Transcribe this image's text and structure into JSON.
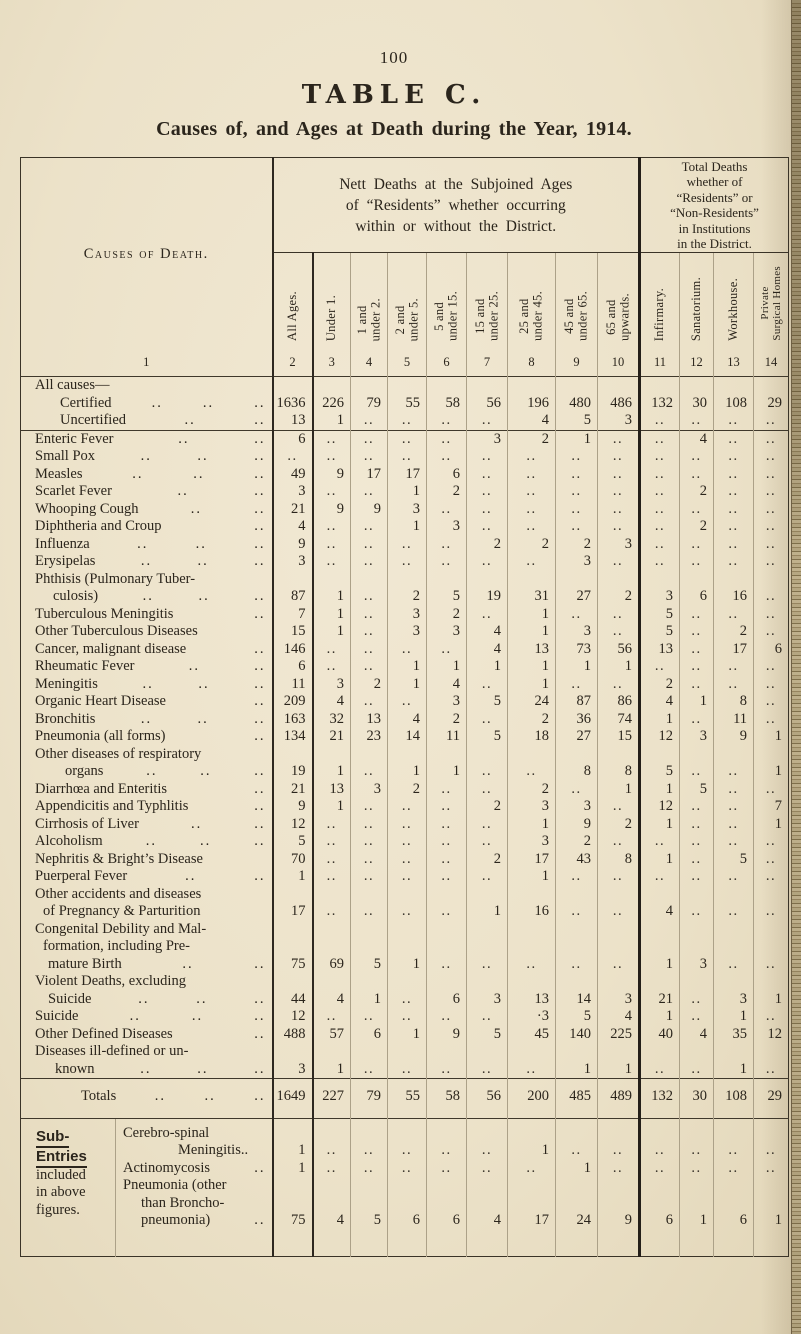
{
  "page": {
    "number": "100",
    "title": "TABLE C.",
    "subtitle": "Causes of, and Ages at Death during the Year, 1914."
  },
  "colors": {
    "paper": "#ece2c9",
    "ink": "#2b251c",
    "rule_dark": "#3a3327",
    "rule_light": "#aca188",
    "binding_edge": "#887852"
  },
  "table": {
    "header": {
      "causes_col": {
        "title": "Causes of Death.",
        "number": "1"
      },
      "nett_group": {
        "lines": [
          "Nett Deaths at the Subjoined Ages",
          "of “Residents” whether occurring",
          "within or without the District."
        ]
      },
      "total_group": {
        "lines": [
          "Total Deaths",
          "whether of",
          "“Residents” or",
          "“Non-Residents”",
          "in Institutions",
          "in the District."
        ]
      },
      "columns": [
        {
          "lines": [
            "All Ages."
          ],
          "number": "2"
        },
        {
          "lines": [
            "Under 1."
          ],
          "number": "3"
        },
        {
          "lines": [
            "1 and",
            "under 2."
          ],
          "number": "4"
        },
        {
          "lines": [
            "2 and",
            "under 5."
          ],
          "number": "5"
        },
        {
          "lines": [
            "5 and",
            "under 15."
          ],
          "number": "6"
        },
        {
          "lines": [
            "15 and",
            "under 25."
          ],
          "number": "7"
        },
        {
          "lines": [
            "25 and",
            "under 45."
          ],
          "number": "8"
        },
        {
          "lines": [
            "45 and",
            "under 65."
          ],
          "number": "9"
        },
        {
          "lines": [
            "65 and",
            "upwards."
          ],
          "number": "10"
        },
        {
          "lines": [
            "Infirmary."
          ],
          "number": "11"
        },
        {
          "lines": [
            "Sanatorium."
          ],
          "number": "12"
        },
        {
          "lines": [
            "Workhouse."
          ],
          "number": "13"
        },
        {
          "lines": [
            "Private",
            "Surgical Homes"
          ],
          "number": "14",
          "small": true
        }
      ]
    },
    "all_causes": {
      "group_label": "All causes—",
      "rows": [
        {
          "lines": [
            {
              "text": "Certified",
              "indent": 25,
              "dots": 3
            }
          ],
          "values": [
            "1636",
            "226",
            "79",
            "55",
            "58",
            "56",
            "196",
            "480",
            "486",
            "132",
            "30",
            "108",
            "29"
          ]
        },
        {
          "lines": [
            {
              "text": "Uncertified",
              "indent": 25,
              "dots": 2
            }
          ],
          "values": [
            "13",
            "1",
            "..",
            "..",
            "..",
            "..",
            "4",
            "5",
            "3",
            "..",
            "..",
            "..",
            ".."
          ]
        }
      ]
    },
    "diseases": [
      {
        "lines": [
          {
            "text": "Enteric Fever",
            "dots": 2
          }
        ],
        "values": [
          "6",
          "..",
          "..",
          "..",
          "..",
          "3",
          "2",
          "1",
          "..",
          "..",
          "4",
          "..",
          ".."
        ]
      },
      {
        "lines": [
          {
            "text": "Small Pox",
            "dots": 3
          }
        ],
        "values": [
          "..",
          "..",
          "..",
          "..",
          "..",
          "..",
          "..",
          "..",
          "..",
          "..",
          "..",
          "..",
          ".."
        ]
      },
      {
        "lines": [
          {
            "text": "Measles",
            "dots": 3
          }
        ],
        "values": [
          "49",
          "9",
          "17",
          "17",
          "6",
          "..",
          "..",
          "..",
          "..",
          "..",
          "..",
          "..",
          ".."
        ]
      },
      {
        "lines": [
          {
            "text": "Scarlet Fever",
            "dots": 2
          }
        ],
        "values": [
          "3",
          "..",
          "..",
          "1",
          "2",
          "..",
          "..",
          "..",
          "..",
          "..",
          "2",
          "..",
          ".."
        ]
      },
      {
        "lines": [
          {
            "text": "Whooping Cough",
            "dots": 2
          }
        ],
        "values": [
          "21",
          "9",
          "9",
          "3",
          "..",
          "..",
          "..",
          "..",
          "..",
          "..",
          "..",
          "..",
          ".."
        ]
      },
      {
        "lines": [
          {
            "text": "Diphtheria and Croup",
            "dots": 1
          }
        ],
        "values": [
          "4",
          "..",
          "..",
          "1",
          "3",
          "..",
          "..",
          "..",
          "..",
          "..",
          "2",
          "..",
          ".."
        ]
      },
      {
        "lines": [
          {
            "text": "Influenza",
            "dots": 3
          }
        ],
        "values": [
          "9",
          "..",
          "..",
          "..",
          "..",
          "2",
          "2",
          "2",
          "3",
          "..",
          "..",
          "..",
          ".."
        ]
      },
      {
        "lines": [
          {
            "text": "Erysipelas",
            "dots": 3
          }
        ],
        "values": [
          "3",
          "..",
          "..",
          "..",
          "..",
          "..",
          "..",
          "3",
          "..",
          "..",
          "..",
          "..",
          ".."
        ]
      },
      {
        "lines": [
          {
            "text": "Phthisis (Pulmonary Tuber-"
          },
          {
            "text": "culosis)",
            "indent": 18,
            "dots": 3
          }
        ],
        "values": [
          "87",
          "1",
          "..",
          "2",
          "5",
          "19",
          "31",
          "27",
          "2",
          "3",
          "6",
          "16",
          ".."
        ]
      },
      {
        "lines": [
          {
            "text": "Tuberculous Meningitis",
            "dots": 1
          }
        ],
        "values": [
          "7",
          "1",
          "..",
          "3",
          "2",
          "..",
          "1",
          "..",
          "..",
          "5",
          "..",
          "..",
          ".."
        ]
      },
      {
        "lines": [
          {
            "text": "Other Tuberculous Diseases"
          }
        ],
        "values": [
          "15",
          "1",
          "..",
          "3",
          "3",
          "4",
          "1",
          "3",
          "..",
          "5",
          "..",
          "2",
          ".."
        ]
      },
      {
        "lines": [
          {
            "text": "Cancer, malignant disease",
            "dots": 1
          }
        ],
        "values": [
          "146",
          "..",
          "..",
          "..",
          "..",
          "4",
          "13",
          "73",
          "56",
          "13",
          "..",
          "17",
          "6"
        ]
      },
      {
        "lines": [
          {
            "text": "Rheumatic Fever",
            "dots": 2
          }
        ],
        "values": [
          "6",
          "..",
          "..",
          "1",
          "1",
          "1",
          "1",
          "1",
          "1",
          "..",
          "..",
          "..",
          ".."
        ]
      },
      {
        "lines": [
          {
            "text": "Meningitis",
            "dots": 3
          }
        ],
        "values": [
          "11",
          "3",
          "2",
          "1",
          "4",
          "..",
          "1",
          "..",
          "..",
          "2",
          "..",
          "..",
          ".."
        ]
      },
      {
        "lines": [
          {
            "text": "Organic Heart Disease",
            "dots": 1
          }
        ],
        "values": [
          "209",
          "4",
          "..",
          "..",
          "3",
          "5",
          "24",
          "87",
          "86",
          "4",
          "1",
          "8",
          ".."
        ]
      },
      {
        "lines": [
          {
            "text": "Bronchitis",
            "dots": 3
          }
        ],
        "values": [
          "163",
          "32",
          "13",
          "4",
          "2",
          "..",
          "2",
          "36",
          "74",
          "1",
          "..",
          "11",
          ".."
        ]
      },
      {
        "lines": [
          {
            "text": "Pneumonia (all forms)",
            "dots": 1
          }
        ],
        "values": [
          "134",
          "21",
          "23",
          "14",
          "11",
          "5",
          "18",
          "27",
          "15",
          "12",
          "3",
          "9",
          "1"
        ]
      },
      {
        "lines": [
          {
            "text": "Other diseases of respiratory"
          },
          {
            "text": "organs",
            "indent": 30,
            "dots": 3
          }
        ],
        "values": [
          "19",
          "1",
          "..",
          "1",
          "1",
          "..",
          "..",
          "8",
          "8",
          "5",
          "..",
          "..",
          "1"
        ]
      },
      {
        "lines": [
          {
            "text": "Diarrhœa and Enteritis",
            "dots": 1
          }
        ],
        "values": [
          "21",
          "13",
          "3",
          "2",
          "..",
          "..",
          "2",
          "..",
          "1",
          "1",
          "5",
          "..",
          ".."
        ]
      },
      {
        "lines": [
          {
            "text": "Appendicitis and Typhlitis",
            "dots": 1
          }
        ],
        "values": [
          "9",
          "1",
          "..",
          "..",
          "..",
          "2",
          "3",
          "3",
          "..",
          "12",
          "..",
          "..",
          "7"
        ]
      },
      {
        "lines": [
          {
            "text": "Cirrhosis of Liver",
            "dots": 2
          }
        ],
        "values": [
          "12",
          "..",
          "..",
          "..",
          "..",
          "..",
          "1",
          "9",
          "2",
          "1",
          "..",
          "..",
          "1"
        ]
      },
      {
        "lines": [
          {
            "text": "Alcoholism",
            "dots": 3
          }
        ],
        "values": [
          "5",
          "..",
          "..",
          "..",
          "..",
          "..",
          "3",
          "2",
          "..",
          "..",
          "..",
          "..",
          ".."
        ]
      },
      {
        "lines": [
          {
            "text": "Nephritis & Bright’s Disease"
          }
        ],
        "values": [
          "70",
          "..",
          "..",
          "..",
          "..",
          "2",
          "17",
          "43",
          "8",
          "1",
          "..",
          "5",
          ".."
        ]
      },
      {
        "lines": [
          {
            "text": "Puerperal Fever",
            "dots": 2
          }
        ],
        "values": [
          "1",
          "..",
          "..",
          "..",
          "..",
          "..",
          "1",
          "..",
          "..",
          "..",
          "..",
          "..",
          ".."
        ]
      },
      {
        "lines": [
          {
            "text": "Other accidents and diseases"
          },
          {
            "text": "of Pregnancy & Parturition",
            "indent": 8
          }
        ],
        "values": [
          "17",
          "..",
          "..",
          "..",
          "..",
          "1",
          "16",
          "..",
          "..",
          "4",
          "..",
          "..",
          ".."
        ]
      },
      {
        "lines": [
          {
            "text": "Congenital Debility and Mal-"
          },
          {
            "text": "formation, including Pre-",
            "indent": 8
          },
          {
            "text": "mature Birth",
            "indent": 13,
            "dots": 2
          }
        ],
        "values": [
          "75",
          "69",
          "5",
          "1",
          "..",
          "..",
          "..",
          "..",
          "..",
          "1",
          "3",
          "..",
          ".."
        ]
      },
      {
        "lines": [
          {
            "text": "Violent Deaths, excluding"
          },
          {
            "text": "Suicide",
            "indent": 13,
            "dots": 3
          }
        ],
        "values": [
          "44",
          "4",
          "1",
          "..",
          "6",
          "3",
          "13",
          "14",
          "3",
          "21",
          "..",
          "3",
          "1"
        ]
      },
      {
        "lines": [
          {
            "text": "Suicide",
            "dots": 3
          }
        ],
        "values": [
          "12",
          "..",
          "..",
          "..",
          "..",
          "..",
          "·3",
          "5",
          "4",
          "1",
          "..",
          "1",
          ".."
        ]
      },
      {
        "lines": [
          {
            "text": "Other Defined Diseases",
            "dots": 1
          }
        ],
        "values": [
          "488",
          "57",
          "6",
          "1",
          "9",
          "5",
          "45",
          "140",
          "225",
          "40",
          "4",
          "35",
          "12"
        ]
      },
      {
        "lines": [
          {
            "text": "Diseases ill-defined or un-"
          },
          {
            "text": "known",
            "indent": 20,
            "dots": 3
          }
        ],
        "values": [
          "3",
          "1",
          "..",
          "..",
          "..",
          "..",
          "..",
          "1",
          "1",
          "..",
          "..",
          "1",
          ".."
        ]
      }
    ],
    "totals": {
      "label": "Totals",
      "values": [
        "1649",
        "227",
        "79",
        "55",
        "58",
        "56",
        "200",
        "485",
        "489",
        "132",
        "30",
        "108",
        "29"
      ]
    },
    "sub_entries": {
      "side_label": {
        "emphasis": [
          "Sub-",
          "Entries"
        ],
        "rest": [
          "included",
          "in above",
          "figures."
        ]
      },
      "rows": [
        {
          "lines": [
            {
              "text": "Cerebro-spinal"
            },
            {
              "text": "Meningitis..",
              "indent": 55
            }
          ],
          "values": [
            "1",
            "..",
            "..",
            "..",
            "..",
            "..",
            "1",
            "..",
            "..",
            "..",
            "..",
            "..",
            ".."
          ]
        },
        {
          "lines": [
            {
              "text": "Actinomycosis",
              "dots": 1
            }
          ],
          "values": [
            "1",
            "..",
            "..",
            "..",
            "..",
            "..",
            "..",
            "1",
            "..",
            "..",
            "..",
            "..",
            ".."
          ]
        },
        {
          "lines": [
            {
              "text": "Pneumonia (other"
            },
            {
              "text": "than Broncho-",
              "indent": 18
            },
            {
              "text": "pneumonia)",
              "indent": 18,
              "dots": 1
            }
          ],
          "values": [
            "75",
            "4",
            "5",
            "6",
            "6",
            "4",
            "17",
            "24",
            "9",
            "6",
            "1",
            "6",
            "1"
          ]
        }
      ]
    }
  }
}
